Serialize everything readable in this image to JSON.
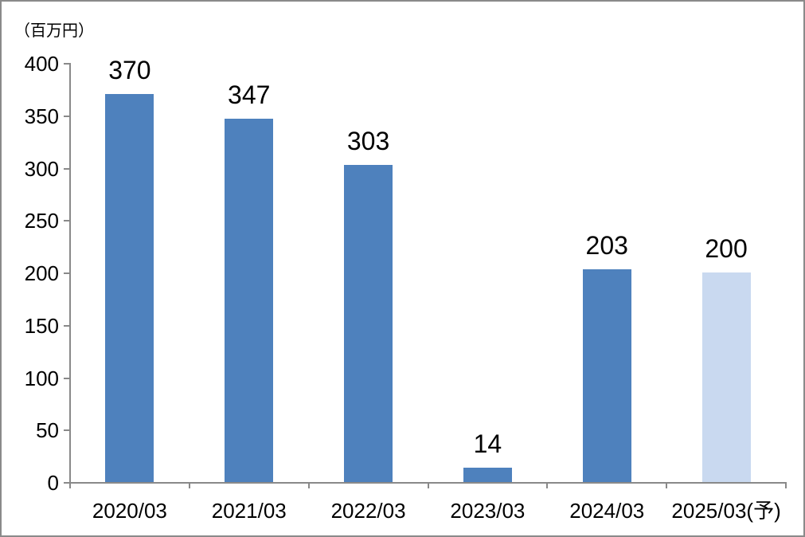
{
  "unit_label": "（百万円）",
  "colors": {
    "bar": "#4e81bd",
    "forecast_bar": "#c9d9f0",
    "axis": "#898989",
    "text": "#000000",
    "background": "#ffffff",
    "frame_border": "#8a8a8a"
  },
  "chart_data": {
    "type": "bar",
    "title": "",
    "xlabel": "",
    "ylabel": "（百万円）",
    "categories": [
      "2020/03",
      "2021/03",
      "2022/03",
      "2023/03",
      "2024/03",
      "2025/03(予)"
    ],
    "values": [
      370,
      347,
      303,
      14,
      203,
      200
    ],
    "data_labels": [
      "370",
      "347",
      "303",
      "14",
      "203",
      "200"
    ],
    "bar_colors": [
      "#4e81bd",
      "#4e81bd",
      "#4e81bd",
      "#4e81bd",
      "#4e81bd",
      "#c9d9f0"
    ],
    "series_note": "last category is a forecast (予) shown in light blue",
    "ylim": [
      0,
      400
    ],
    "ytick_interval": 50,
    "yticks": [
      0,
      50,
      100,
      150,
      200,
      250,
      300,
      350,
      400
    ],
    "grid": false,
    "legend_position": "none"
  }
}
